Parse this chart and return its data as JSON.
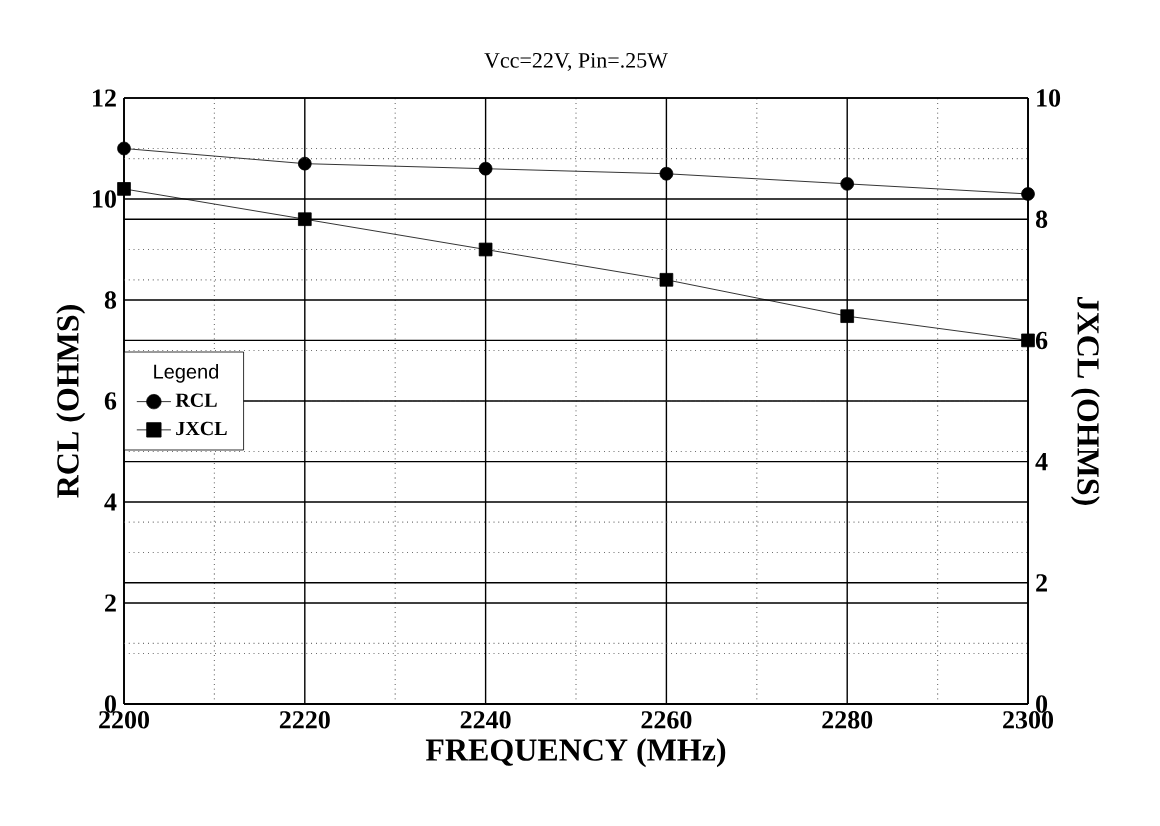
{
  "chart_data": {
    "type": "line",
    "title": "Vcc=22V, Pin=.25W",
    "xlabel": "FREQUENCY (MHz)",
    "ylabel": "RCL (OHMS)",
    "y2label": "JXCL (OHMS)",
    "legend_title": "Legend",
    "x": [
      2200,
      2220,
      2240,
      2260,
      2280,
      2300
    ],
    "series": [
      {
        "name": "RCL",
        "color": "#000000",
        "marker": "circle",
        "values": [
          11.0,
          10.7,
          10.6,
          10.5,
          10.3,
          10.1
        ]
      },
      {
        "name": "JXCL",
        "color": "#000000",
        "marker": "square",
        "axis": "y2",
        "values": [
          8.5,
          8.0,
          7.5,
          7.0,
          6.4,
          6.0
        ]
      }
    ],
    "xlim": [
      2200,
      2300
    ],
    "xticks": [
      2200,
      2220,
      2240,
      2260,
      2280,
      2300
    ],
    "ylim": [
      0,
      12
    ],
    "yticks": [
      0,
      2,
      4,
      6,
      8,
      10,
      12
    ],
    "y2lim": [
      0,
      10
    ],
    "y2ticks": [
      0,
      2,
      4,
      6,
      8,
      10
    ],
    "grid": true,
    "legend": "left",
    "line_style": "solid"
  }
}
